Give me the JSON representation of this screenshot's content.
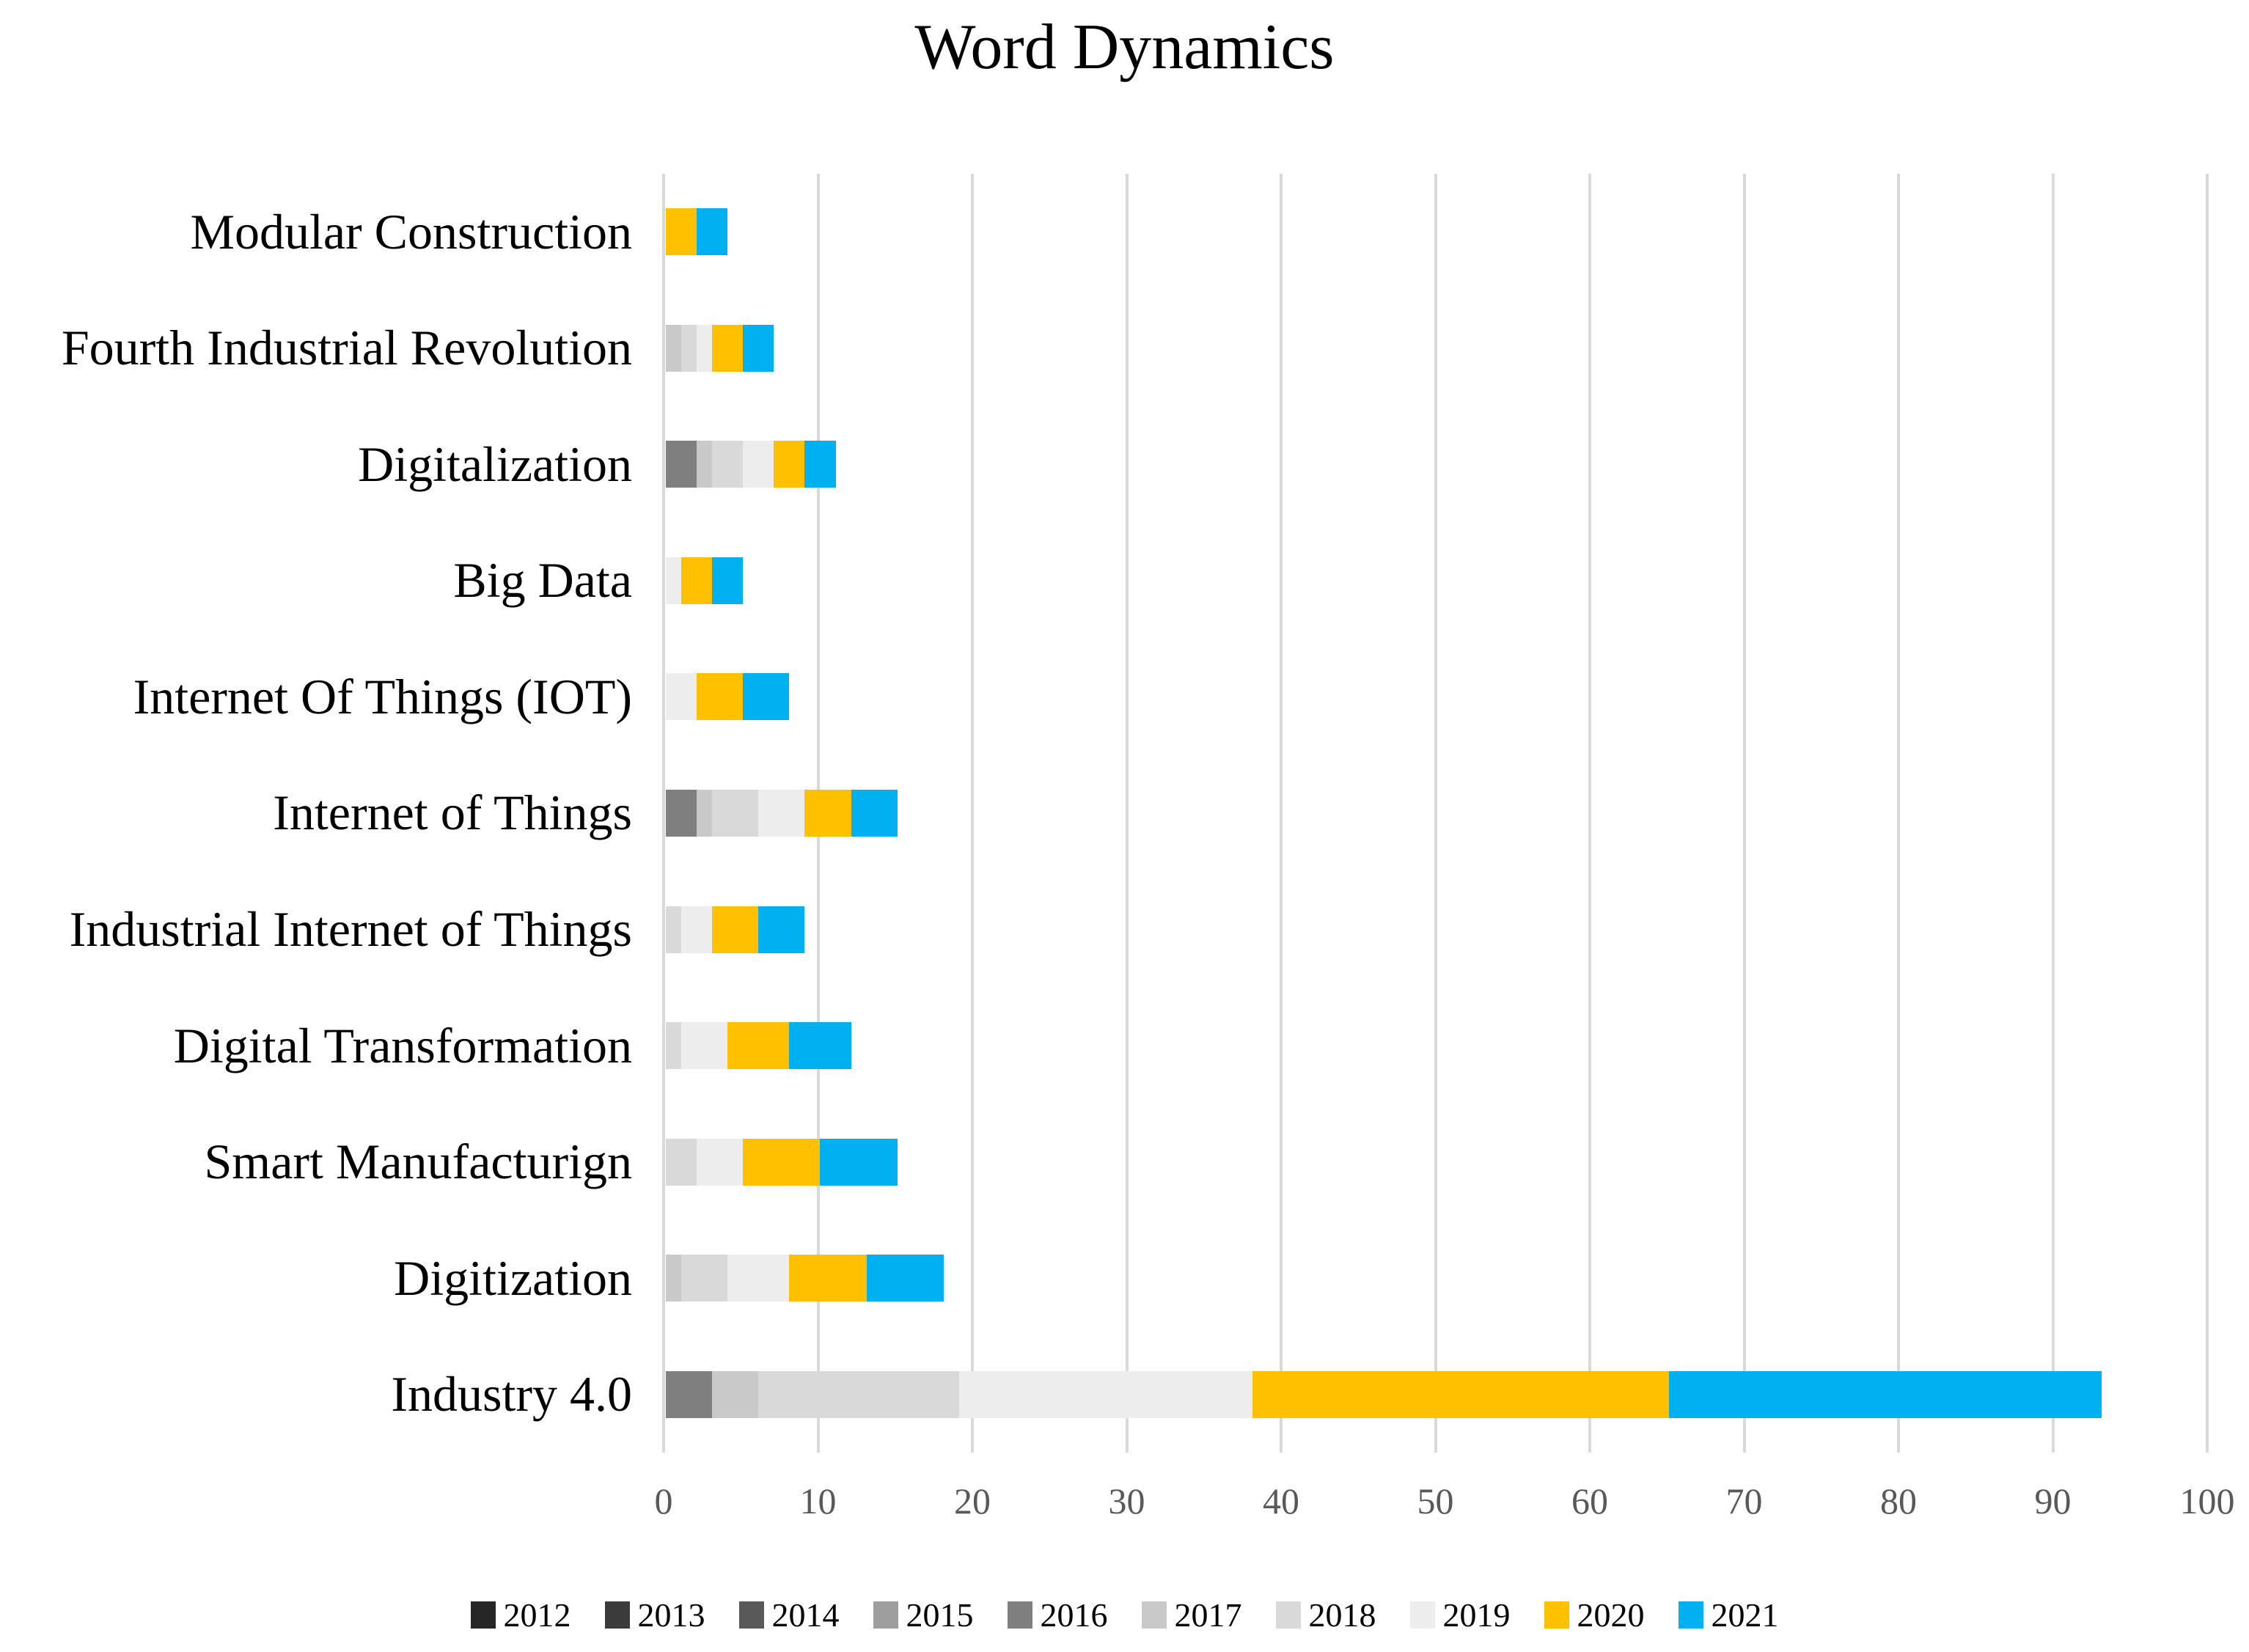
{
  "title": "Word Dynamics",
  "style": {
    "background": "#ffffff",
    "gridline_color": "#d9d9d9",
    "tick_label_color": "#595959",
    "text_color": "#000000"
  },
  "chart_data": {
    "type": "bar",
    "orientation": "horizontal",
    "stacked": true,
    "title": "Word Dynamics",
    "xlabel": "",
    "ylabel": "",
    "xlim": [
      0,
      100
    ],
    "x_ticks": [
      0,
      10,
      20,
      30,
      40,
      50,
      60,
      70,
      80,
      90,
      100
    ],
    "grid": "vertical",
    "legend_position": "bottom",
    "categories": [
      "Modular Construction",
      "Fourth Industrial Revolution",
      "Digitalization",
      "Big Data",
      "Internet Of Things (IOT)",
      "Internet of Things",
      "Industrial Internet of Things",
      "Digital Transformation",
      "Smart Manufacturign",
      "Digitization",
      "Industry 4.0"
    ],
    "series": [
      {
        "name": "2012",
        "color": "#262626",
        "values": [
          0,
          0,
          0,
          0,
          0,
          0,
          0,
          0,
          0,
          0,
          0
        ]
      },
      {
        "name": "2013",
        "color": "#3b3b3b",
        "values": [
          0,
          0,
          0,
          0,
          0,
          0,
          0,
          0,
          0,
          0,
          0
        ]
      },
      {
        "name": "2014",
        "color": "#595959",
        "values": [
          0,
          0,
          0,
          0,
          0,
          0,
          0,
          0,
          0,
          0,
          0
        ]
      },
      {
        "name": "2015",
        "color": "#9e9e9e",
        "values": [
          0,
          0,
          0,
          0,
          0,
          0,
          0,
          0,
          0,
          0,
          0
        ]
      },
      {
        "name": "2016",
        "color": "#7f7f7f",
        "values": [
          0,
          0,
          2,
          0,
          0,
          2,
          0,
          0,
          0,
          0,
          3
        ]
      },
      {
        "name": "2017",
        "color": "#c9c9c9",
        "values": [
          0,
          1,
          1,
          0,
          0,
          1,
          0,
          0,
          0,
          1,
          3
        ]
      },
      {
        "name": "2018",
        "color": "#d9d9d9",
        "values": [
          0,
          1,
          2,
          0,
          0,
          3,
          1,
          1,
          2,
          3,
          13
        ]
      },
      {
        "name": "2019",
        "color": "#ededed",
        "values": [
          0,
          1,
          2,
          1,
          2,
          3,
          2,
          3,
          3,
          4,
          19
        ]
      },
      {
        "name": "2020",
        "color": "#ffc000",
        "values": [
          2,
          2,
          2,
          2,
          3,
          3,
          3,
          4,
          5,
          5,
          27
        ]
      },
      {
        "name": "2021",
        "color": "#00b0f0",
        "values": [
          2,
          2,
          2,
          2,
          3,
          3,
          3,
          4,
          5,
          5,
          28
        ]
      }
    ]
  }
}
